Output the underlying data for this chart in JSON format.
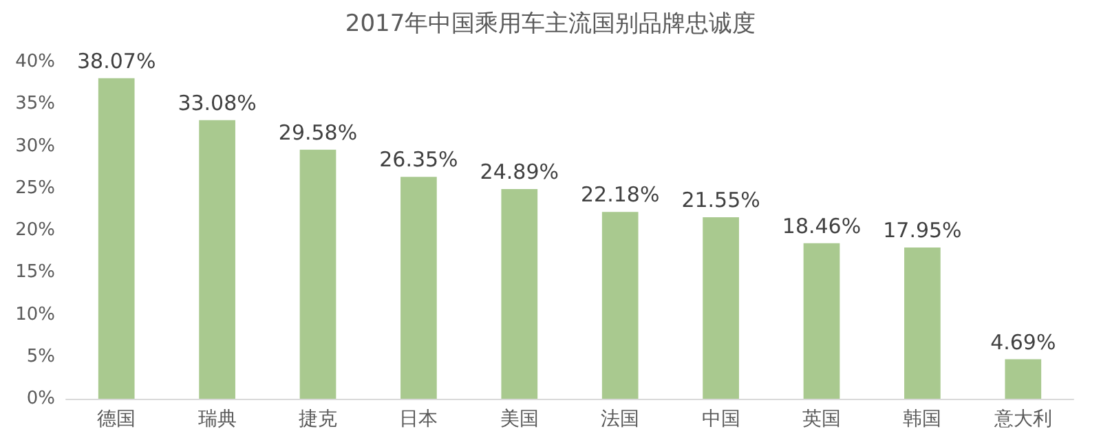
{
  "chart_data": {
    "type": "bar",
    "title": "2017年中国乘用车主流国别品牌忠诚度",
    "categories": [
      "德国",
      "瑞典",
      "捷克",
      "日本",
      "美国",
      "法国",
      "中国",
      "英国",
      "韩国",
      "意大利"
    ],
    "values": [
      38.07,
      33.08,
      29.58,
      26.35,
      24.89,
      22.18,
      21.55,
      18.46,
      17.95,
      4.69
    ],
    "value_labels": [
      "38.07%",
      "33.08%",
      "29.58%",
      "26.35%",
      "24.89%",
      "22.18%",
      "21.55%",
      "18.46%",
      "17.95%",
      "4.69%"
    ],
    "color": "#a9c98f",
    "ylim": [
      0,
      40
    ],
    "yticks": [
      {
        "value": 0,
        "label": "0%"
      },
      {
        "value": 5,
        "label": "5%"
      },
      {
        "value": 10,
        "label": "10%"
      },
      {
        "value": 15,
        "label": "15%"
      },
      {
        "value": 20,
        "label": "20%"
      },
      {
        "value": 25,
        "label": "25%"
      },
      {
        "value": 30,
        "label": "30%"
      },
      {
        "value": 35,
        "label": "35%"
      },
      {
        "value": 40,
        "label": "40%"
      }
    ],
    "grid": false
  }
}
